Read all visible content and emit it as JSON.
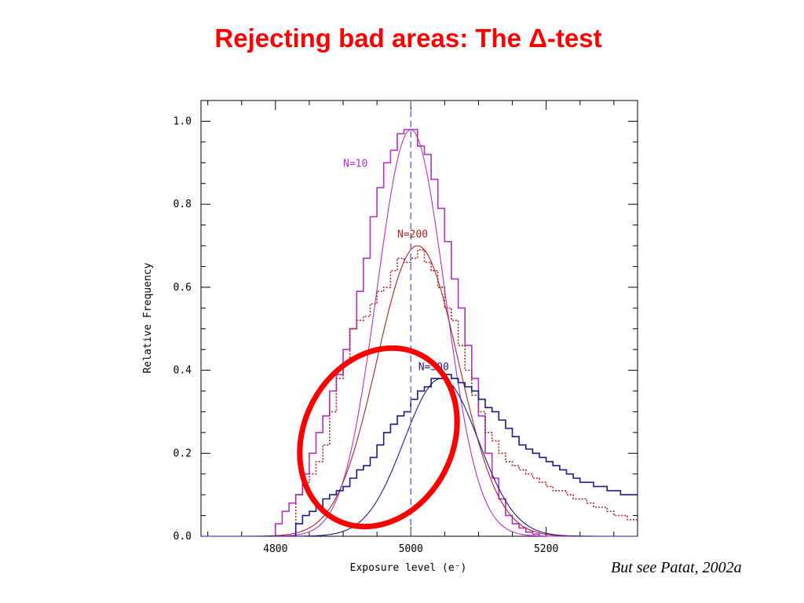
{
  "slide": {
    "title": "Rejecting bad areas: The Δ-test",
    "citation": "But see Patat, 2002a"
  },
  "colors": {
    "title": "#ff0000",
    "n10": "#b030c8",
    "n200": "#b22222",
    "n500": "#1a1a8c",
    "marker_line": "#7070d0",
    "ellipse": "#ff0000"
  },
  "chart_data": {
    "type": "line",
    "xlabel": "Exposure level (e⁻)",
    "ylabel": "Relative Frequency",
    "xlim": [
      4690,
      5335
    ],
    "ylim": [
      0,
      1.05
    ],
    "xticks": [
      4800,
      5000,
      5200
    ],
    "yticks": [
      0.0,
      0.2,
      0.4,
      0.6,
      0.8,
      1.0
    ],
    "ytick_labels": [
      "0.0",
      "0.2",
      "0.4",
      "0.6",
      "0.8",
      "1.0"
    ],
    "vline_x": 5000,
    "grid": false,
    "annotations": [
      {
        "text": "N=10",
        "x": 4900,
        "y": 0.89,
        "series": "n10"
      },
      {
        "text": "N=200",
        "x": 4980,
        "y": 0.72,
        "series": "n200"
      },
      {
        "text": "N=500",
        "x": 5011,
        "y": 0.4,
        "series": "n500"
      }
    ],
    "series": [
      {
        "name": "N=10",
        "key": "n10",
        "kind": "gaussian",
        "mean": 5000,
        "sigma": 50,
        "amp": 0.98,
        "hist_x": [
          4800,
          4810,
          4820,
          4830,
          4840,
          4850,
          4860,
          4870,
          4880,
          4890,
          4900,
          4910,
          4920,
          4930,
          4940,
          4950,
          4960,
          4970,
          4980,
          4990,
          5000,
          5010,
          5020,
          5030,
          5040,
          5050,
          5060,
          5070,
          5080,
          5090,
          5100,
          5110,
          5120,
          5130,
          5140,
          5150,
          5160,
          5170,
          5180,
          5190
        ],
        "hist_y": [
          0.03,
          0.06,
          0.08,
          0.1,
          0.15,
          0.2,
          0.25,
          0.29,
          0.35,
          0.39,
          0.45,
          0.5,
          0.59,
          0.67,
          0.77,
          0.84,
          0.9,
          0.93,
          0.97,
          0.98,
          0.98,
          0.94,
          0.92,
          0.86,
          0.79,
          0.71,
          0.62,
          0.55,
          0.46,
          0.38,
          0.29,
          0.2,
          0.14,
          0.09,
          0.05,
          0.03,
          0.02,
          0.01,
          0.005,
          0.0
        ]
      },
      {
        "name": "N=200",
        "key": "n200",
        "kind": "gaussian",
        "mean": 5010,
        "sigma": 60,
        "amp": 0.7,
        "hist_x": [
          4830,
          4840,
          4850,
          4860,
          4870,
          4880,
          4890,
          4900,
          4910,
          4920,
          4930,
          4940,
          4950,
          4960,
          4970,
          4980,
          4990,
          5000,
          5010,
          5020,
          5030,
          5040,
          5050,
          5060,
          5070,
          5080,
          5090,
          5100,
          5110,
          5120,
          5130,
          5140,
          5150,
          5160,
          5170,
          5180,
          5190,
          5200,
          5210,
          5220,
          5230,
          5240,
          5250,
          5260,
          5270,
          5280,
          5290,
          5300,
          5310,
          5320,
          5330
        ],
        "hist_y": [
          0.1,
          0.13,
          0.15,
          0.18,
          0.22,
          0.3,
          0.38,
          0.42,
          0.5,
          0.52,
          0.53,
          0.56,
          0.59,
          0.6,
          0.64,
          0.67,
          0.66,
          0.67,
          0.69,
          0.66,
          0.64,
          0.6,
          0.55,
          0.52,
          0.46,
          0.4,
          0.34,
          0.3,
          0.25,
          0.23,
          0.2,
          0.18,
          0.17,
          0.16,
          0.15,
          0.14,
          0.13,
          0.12,
          0.11,
          0.11,
          0.1,
          0.09,
          0.09,
          0.08,
          0.07,
          0.07,
          0.06,
          0.05,
          0.05,
          0.04,
          0.04
        ]
      },
      {
        "name": "N=500",
        "key": "n500",
        "kind": "gaussian",
        "mean": 5045,
        "sigma": 55,
        "amp": 0.38,
        "hist_x": [
          4830,
          4840,
          4850,
          4860,
          4870,
          4880,
          4890,
          4900,
          4910,
          4920,
          4930,
          4940,
          4950,
          4960,
          4970,
          4980,
          4990,
          5000,
          5010,
          5020,
          5030,
          5040,
          5050,
          5060,
          5070,
          5080,
          5090,
          5100,
          5110,
          5120,
          5130,
          5140,
          5150,
          5160,
          5170,
          5180,
          5190,
          5200,
          5210,
          5220,
          5230,
          5240,
          5250,
          5260,
          5270,
          5280,
          5290,
          5300,
          5310,
          5320,
          5330
        ],
        "hist_y": [
          0.03,
          0.05,
          0.06,
          0.07,
          0.09,
          0.1,
          0.11,
          0.12,
          0.14,
          0.16,
          0.17,
          0.19,
          0.22,
          0.25,
          0.27,
          0.29,
          0.3,
          0.33,
          0.35,
          0.36,
          0.38,
          0.38,
          0.39,
          0.38,
          0.37,
          0.36,
          0.35,
          0.33,
          0.31,
          0.3,
          0.28,
          0.26,
          0.24,
          0.22,
          0.21,
          0.2,
          0.19,
          0.18,
          0.17,
          0.16,
          0.15,
          0.14,
          0.13,
          0.13,
          0.12,
          0.12,
          0.11,
          0.11,
          0.1,
          0.1,
          0.1
        ]
      }
    ]
  }
}
